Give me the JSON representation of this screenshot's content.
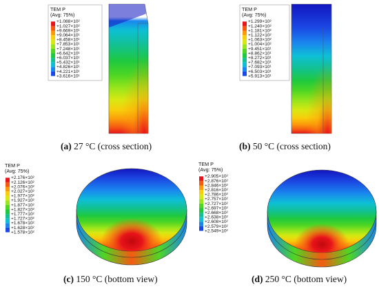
{
  "panels": [
    {
      "id": "a",
      "caption_letter": "(a)",
      "caption_text": "27 °C (cross section)",
      "legend_title": "TEM P",
      "legend_subtitle": "(Avg: 75%)",
      "legend_labels": [
        "+1.088×10²",
        "+1.027×10²",
        "+9.669×10¹",
        "+9.064×10¹",
        "+8.458×10¹",
        "+7.853×10¹",
        "+7.248×10¹",
        "+6.642×10¹",
        "+6.037×10¹",
        "+5.432×10¹",
        "+4.826×10¹",
        "+4.221×10¹",
        "+3.616×10¹"
      ]
    },
    {
      "id": "b",
      "caption_letter": "(b)",
      "caption_text": "50 °C (cross section)",
      "legend_title": "TEM P",
      "legend_subtitle": "(Avg: 75%)",
      "legend_labels": [
        "+1.299×10²",
        "+1.240×10²",
        "+1.181×10²",
        "+1.122×10²",
        "+1.063×10²",
        "+1.004×10²",
        "+9.451×10¹",
        "+8.862×10¹",
        "+8.272×10¹",
        "+7.682×10¹",
        "+7.093×10¹",
        "+6.503×10¹",
        "+5.913×10¹"
      ]
    },
    {
      "id": "c",
      "caption_letter": "(c)",
      "caption_text": "150 °C (bottom view)",
      "legend_title": "TEM P",
      "legend_subtitle": "(Avg: 75%)",
      "legend_labels": [
        "+2.176×10²",
        "+2.126×10²",
        "+2.076×10²",
        "+2.027×10²",
        "+1.977×10²",
        "+1.927×10²",
        "+1.877×10²",
        "+1.827×10²",
        "+1.777×10²",
        "+1.727×10²",
        "+1.678×10²",
        "+1.628×10²",
        "+1.578×10²"
      ]
    },
    {
      "id": "d",
      "caption_letter": "(d)",
      "caption_text": "250 °C (bottom view)",
      "legend_title": "TEM P",
      "legend_subtitle": "(Avg: 75%)",
      "legend_labels": [
        "+2.905×10²",
        "+2.876×10²",
        "+2.846×10²",
        "+2.816×10²",
        "+2.786×10²",
        "+2.757×10²",
        "+2.727×10²",
        "+2.697×10²",
        "+2.668×10²",
        "+2.638×10²",
        "+2.608×10²",
        "+2.579×10²",
        "+2.549×10²"
      ]
    }
  ],
  "colormap": [
    "#e8141a",
    "#f55a12",
    "#fb9a0a",
    "#f8cd0b",
    "#d9e812",
    "#9ae51b",
    "#4fd623",
    "#1ec93f",
    "#12c18f",
    "#0ebfd6",
    "#1a86ee",
    "#1b47e3",
    "#1216bf"
  ]
}
